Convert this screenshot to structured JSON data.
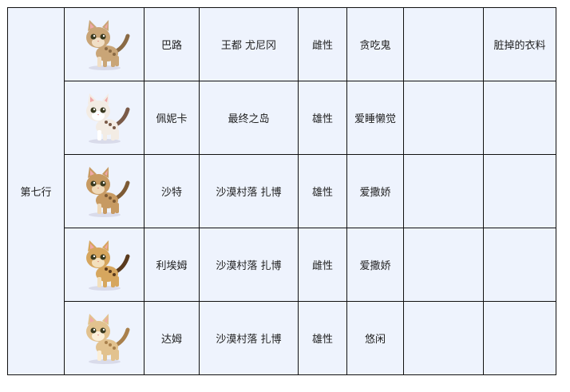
{
  "group_label": "第七行",
  "cats": [
    {
      "name": "巴路",
      "location": "王都 尤尼冈",
      "gender": "雌性",
      "trait": "贪吃鬼",
      "col7": "",
      "item": "脏掉的衣料",
      "icon": "tabby-cat-icon",
      "colors": {
        "body": "#c9a577",
        "spot": "#8a6a45",
        "belly": "#f1dfc6"
      }
    },
    {
      "name": "佩妮卡",
      "location": "最终之岛",
      "gender": "雄性",
      "trait": "爱睡懒觉",
      "col7": "",
      "item": "",
      "icon": "calico-cat-icon",
      "colors": {
        "body": "#f3ece4",
        "spot": "#7a5a48",
        "belly": "#ffffff"
      }
    },
    {
      "name": "沙特",
      "location": "沙漠村落 扎博",
      "gender": "雄性",
      "trait": "爱撒娇",
      "col7": "",
      "item": "",
      "icon": "brown-tabby-cat-icon",
      "colors": {
        "body": "#c79a62",
        "spot": "#7d5a34",
        "belly": "#efd9b9"
      }
    },
    {
      "name": "利埃姆",
      "location": "沙漠村落 扎博",
      "gender": "雌性",
      "trait": "爱撒娇",
      "col7": "",
      "item": "",
      "icon": "leopard-cat-icon",
      "colors": {
        "body": "#d6a65e",
        "spot": "#5a3a1d",
        "belly": "#f3e0bd"
      }
    },
    {
      "name": "达姆",
      "location": "沙漠村落 扎博",
      "gender": "雄性",
      "trait": "悠闲",
      "col7": "",
      "item": "",
      "icon": "cream-tabby-cat-icon",
      "colors": {
        "body": "#e2c28f",
        "spot": "#a9804c",
        "belly": "#fbefd9"
      }
    }
  ]
}
